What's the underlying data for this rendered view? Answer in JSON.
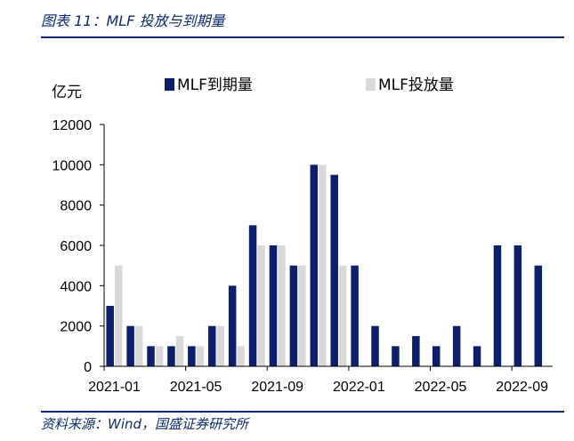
{
  "header": {
    "title": "图表 11：MLF 投放与到期量"
  },
  "footer": {
    "source": "资料来源：Wind，国盛证券研究所"
  },
  "colors": {
    "maturity": "#0b1f6b",
    "injection": "#d9d9d9",
    "rule": "#0b2a6f"
  },
  "chart_data": {
    "type": "bar",
    "title": "",
    "ylabel": "亿元",
    "xlabel": "",
    "ylim": [
      0,
      12000
    ],
    "yticks": [
      0,
      2000,
      4000,
      6000,
      8000,
      10000,
      12000
    ],
    "legend_position": "top",
    "grid": false,
    "categories": [
      "2021-01",
      "2021-02",
      "2021-03",
      "2021-04",
      "2021-05",
      "2021-06",
      "2021-07",
      "2021-08",
      "2021-09",
      "2021-10",
      "2021-11",
      "2021-12",
      "2022-01",
      "2022-02",
      "2022-03",
      "2022-04",
      "2022-05",
      "2022-06",
      "2022-07",
      "2022-08",
      "2022-09",
      "2022-10"
    ],
    "xtick_labels": [
      "2021-01",
      "2021-05",
      "2021-09",
      "2022-01",
      "2022-05",
      "2022-09"
    ],
    "series": [
      {
        "name": "MLF到期量",
        "values": [
          3000,
          2000,
          1000,
          1000,
          1000,
          2000,
          4000,
          7000,
          6000,
          5000,
          10000,
          9500,
          5000,
          2000,
          1000,
          1500,
          1000,
          2000,
          1000,
          6000,
          6000,
          5000
        ]
      },
      {
        "name": "MLF投放量",
        "values": [
          5000,
          2000,
          1000,
          1500,
          1000,
          2000,
          1000,
          6000,
          6000,
          5000,
          10000,
          5000,
          null,
          null,
          null,
          null,
          null,
          null,
          null,
          null,
          null,
          null
        ]
      }
    ]
  }
}
